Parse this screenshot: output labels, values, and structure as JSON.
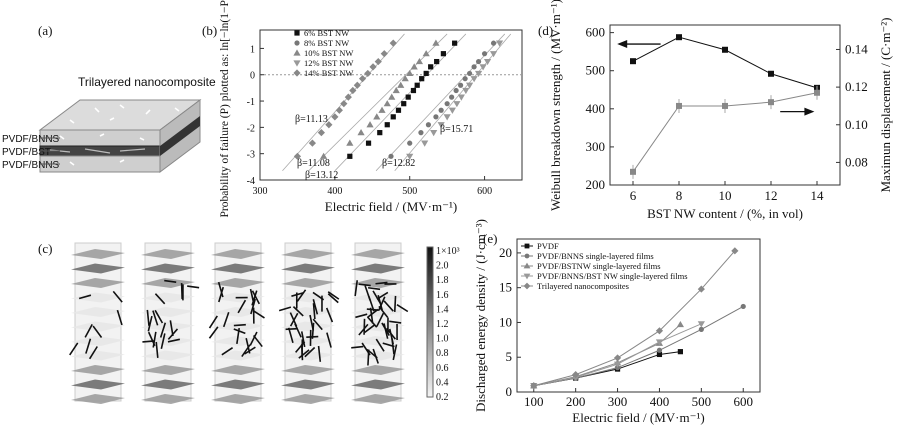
{
  "panels": {
    "a": {
      "label": "(a)",
      "title": "Trilayered nanocomposite",
      "layers": [
        "PVDF/BNNS",
        "PVDF/BST",
        "PVDF/BNNS"
      ]
    },
    "c": {
      "label": "(c)",
      "colorbar_ticks": [
        "1×10³",
        "2.0",
        "1.8",
        "1.6",
        "1.4",
        "1.2",
        "1.0",
        "0.8",
        "0.6",
        "0.4",
        "0.2"
      ]
    }
  },
  "chart_data": [
    {
      "id": "b",
      "panel_label": "(b)",
      "type": "scatter",
      "xlabel": "Electric field / (MV·m⁻¹)",
      "ylabel": "Probability of failure (P) plotted as: ln[−ln(1−P)]",
      "xlim": [
        300,
        650
      ],
      "ylim": [
        -4,
        1.7
      ],
      "xticks": [
        300,
        400,
        500,
        600
      ],
      "yticks": [
        -4,
        -3,
        -2,
        -1,
        0,
        1
      ],
      "legend_position": "top-left",
      "series": [
        {
          "name": "6% BST NW",
          "marker": "square",
          "beta": "β=13.12",
          "x": [
            420,
            445,
            460,
            470,
            478,
            485,
            492,
            498,
            505,
            510,
            516,
            522,
            528,
            536,
            545,
            560
          ],
          "y": [
            -3.1,
            -2.6,
            -2.2,
            -1.9,
            -1.6,
            -1.35,
            -1.1,
            -0.85,
            -0.6,
            -0.4,
            -0.15,
            0.05,
            0.3,
            0.5,
            0.8,
            1.2
          ]
        },
        {
          "name": "8% BST NW",
          "marker": "circle",
          "beta": "β=12.82",
          "x": [
            475,
            500,
            515,
            525,
            535,
            542,
            550,
            556,
            562,
            568,
            574,
            580,
            586,
            592,
            600,
            612
          ],
          "y": [
            -3.1,
            -2.6,
            -2.2,
            -1.9,
            -1.6,
            -1.35,
            -1.1,
            -0.85,
            -0.6,
            -0.4,
            -0.15,
            0.05,
            0.3,
            0.5,
            0.8,
            1.2
          ]
        },
        {
          "name": "10% BST NW",
          "marker": "triangle-up",
          "beta": "β=11.08",
          "x": [
            385,
            420,
            435,
            447,
            456,
            463,
            470,
            476,
            482,
            488,
            494,
            500,
            506,
            513,
            522,
            535
          ],
          "y": [
            -3.1,
            -2.6,
            -2.2,
            -1.9,
            -1.6,
            -1.35,
            -1.1,
            -0.85,
            -0.6,
            -0.4,
            -0.15,
            0.05,
            0.3,
            0.5,
            0.8,
            1.2
          ]
        },
        {
          "name": "12% BST NW",
          "marker": "triangle-down",
          "beta": "β=15.71",
          "x": [
            500,
            520,
            532,
            542,
            550,
            557,
            563,
            569,
            575,
            580,
            586,
            592,
            598,
            604,
            612,
            620
          ],
          "y": [
            -3.1,
            -2.6,
            -2.2,
            -1.9,
            -1.6,
            -1.35,
            -1.1,
            -0.85,
            -0.6,
            -0.4,
            -0.15,
            0.05,
            0.3,
            0.5,
            0.8,
            1.2
          ]
        },
        {
          "name": "14% BST NW",
          "marker": "diamond",
          "beta": "β=11.13",
          "x": [
            350,
            370,
            382,
            392,
            400,
            406,
            412,
            418,
            424,
            430,
            437,
            444,
            451,
            458,
            466,
            478
          ],
          "y": [
            -3.1,
            -2.6,
            -2.2,
            -1.9,
            -1.6,
            -1.35,
            -1.1,
            -0.85,
            -0.6,
            -0.4,
            -0.15,
            0.05,
            0.3,
            0.5,
            0.8,
            1.2
          ]
        }
      ]
    },
    {
      "id": "d",
      "panel_label": "(d)",
      "type": "line",
      "xlabel": "BST NW content / (%, in vol)",
      "ylabel": "Weibull breakdown strength / (MV·m⁻¹)",
      "ylabel_right": "Maximun displacement / (C·m⁻²)",
      "x": [
        6,
        8,
        10,
        12,
        14
      ],
      "xlim": [
        5,
        15
      ],
      "ylim": [
        200,
        620
      ],
      "yticks": [
        200,
        300,
        400,
        500,
        600
      ],
      "ylim_right": [
        0.068,
        0.153
      ],
      "yticks_right": [
        0.08,
        0.1,
        0.12,
        0.14
      ],
      "series": [
        {
          "name": "breakdown",
          "axis": "left",
          "marker": "square",
          "values": [
            525,
            588,
            555,
            492,
            455
          ]
        },
        {
          "name": "displacement",
          "axis": "right",
          "marker": "square",
          "values": [
            0.075,
            0.11,
            0.11,
            0.112,
            0.117
          ]
        }
      ]
    },
    {
      "id": "e",
      "panel_label": "(e)",
      "type": "line",
      "xlabel": "Electric field / (MV·m⁻¹)",
      "ylabel": "Discharged energy density / (J·cm⁻³)",
      "x_ticks": [
        100,
        200,
        300,
        400,
        500,
        600
      ],
      "xlim": [
        60,
        640
      ],
      "ylim": [
        0,
        22
      ],
      "yticks": [
        0,
        5,
        10,
        15,
        20
      ],
      "legend_position": "top-left",
      "series": [
        {
          "name": "PVDF",
          "marker": "square",
          "x": [
            100,
            200,
            300,
            400,
            450
          ],
          "values": [
            0.9,
            2.0,
            3.3,
            5.4,
            5.8
          ]
        },
        {
          "name": "PVDF/BNNS single-layered films",
          "marker": "circle",
          "x": [
            100,
            200,
            300,
            400,
            500,
            600
          ],
          "values": [
            0.9,
            2.0,
            3.5,
            6.0,
            9.0,
            12.3
          ]
        },
        {
          "name": "PVDF/BSTNW single-layered films",
          "marker": "triangle-up",
          "x": [
            100,
            200,
            300,
            400,
            450
          ],
          "values": [
            0.9,
            2.2,
            4.2,
            7.0,
            9.7
          ]
        },
        {
          "name": "PVDF/BNNS/BST NW single-layered films",
          "marker": "triangle-down",
          "x": [
            100,
            200,
            300,
            400,
            500
          ],
          "values": [
            0.9,
            2.1,
            4.0,
            7.2,
            9.8
          ]
        },
        {
          "name": "Trilayered nanocomposites",
          "marker": "diamond",
          "x": [
            100,
            200,
            300,
            400,
            500,
            580
          ],
          "values": [
            0.9,
            2.5,
            4.9,
            8.8,
            14.8,
            20.3
          ]
        }
      ]
    }
  ]
}
